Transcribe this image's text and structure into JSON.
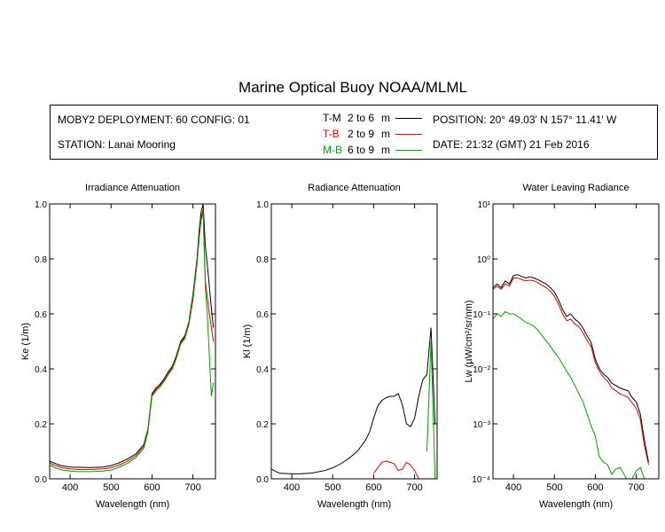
{
  "title": "Marine Optical Buoy NOAA/MLML",
  "info": {
    "deployment": "MOBY2 DEPLOYMENT: 60 CONFIG: 01",
    "station": "STATION: Lanai Mooring",
    "position": "POSITION: 20° 49.03' N   157° 11.41' W",
    "date": "DATE: 21:32 (GMT) 21 Feb 2016",
    "pairs": [
      {
        "code": "T-M",
        "range": "2 to 6",
        "unit": "m",
        "color": "#000000"
      },
      {
        "code": "T-B",
        "range": "2 to 9",
        "unit": "m",
        "color": "#e00000"
      },
      {
        "code": "M-B",
        "range": "6 to 9",
        "unit": "m",
        "color": "#00a000"
      }
    ]
  },
  "chart_data": [
    {
      "type": "line",
      "title": "Irradiance Attenuation",
      "xlabel": "Wavelength (nm)",
      "ylabel": "Ke  (1/m)",
      "xlim": [
        350,
        755
      ],
      "ylim": [
        0,
        1.0
      ],
      "xticks": [
        400,
        500,
        600,
        700
      ],
      "yticks": [
        "0.0",
        "0.2",
        "0.4",
        "0.6",
        "0.8",
        "1.0"
      ],
      "yticks_values": [
        0,
        0.2,
        0.4,
        0.6,
        0.8,
        1.0
      ],
      "x": [
        350,
        360,
        370,
        380,
        400,
        420,
        450,
        480,
        500,
        520,
        540,
        560,
        580,
        590,
        600,
        610,
        620,
        630,
        640,
        650,
        660,
        670,
        680,
        690,
        700,
        710,
        715,
        720,
        725,
        730,
        735,
        740,
        745,
        750
      ],
      "series": [
        {
          "color": "#000000",
          "values": [
            0.065,
            0.058,
            0.052,
            0.047,
            0.043,
            0.042,
            0.041,
            0.043,
            0.048,
            0.058,
            0.072,
            0.09,
            0.125,
            0.18,
            0.31,
            0.33,
            0.345,
            0.365,
            0.39,
            0.41,
            0.45,
            0.5,
            0.52,
            0.57,
            0.67,
            0.8,
            0.9,
            0.97,
            1.0,
            0.85,
            0.78,
            0.7,
            0.62,
            0.55
          ]
        },
        {
          "color": "#e00000",
          "values": [
            0.058,
            0.05,
            0.045,
            0.04,
            0.036,
            0.034,
            0.034,
            0.036,
            0.04,
            0.05,
            0.064,
            0.083,
            0.118,
            0.175,
            0.305,
            0.325,
            0.34,
            0.36,
            0.385,
            0.405,
            0.445,
            0.495,
            0.515,
            0.565,
            0.66,
            0.79,
            0.88,
            0.95,
            0.98,
            0.72,
            0.66,
            0.6,
            0.55,
            0.5
          ]
        },
        {
          "color": "#00a000",
          "values": [
            0.05,
            0.042,
            0.037,
            0.032,
            0.028,
            0.026,
            0.026,
            0.028,
            0.032,
            0.042,
            0.056,
            0.076,
            0.112,
            0.17,
            0.3,
            0.32,
            0.335,
            0.355,
            0.38,
            0.4,
            0.44,
            0.49,
            0.51,
            0.56,
            0.65,
            0.78,
            0.87,
            0.94,
            0.97,
            0.7,
            0.6,
            0.45,
            0.3,
            0.35
          ]
        }
      ]
    },
    {
      "type": "line",
      "title": "Radiance Attenuation",
      "xlabel": "Wavelength (nm)",
      "ylabel": "Kl  (1/m)",
      "xlim": [
        350,
        755
      ],
      "ylim": [
        0,
        1.0
      ],
      "xticks": [
        400,
        500,
        600,
        700
      ],
      "yticks": [
        "0.0",
        "0.2",
        "0.4",
        "0.6",
        "0.8",
        "1.0"
      ],
      "yticks_values": [
        0,
        0.2,
        0.4,
        0.6,
        0.8,
        1.0
      ],
      "x": [
        350,
        370,
        400,
        420,
        450,
        480,
        500,
        520,
        540,
        560,
        580,
        590,
        600,
        610,
        620,
        630,
        640,
        650,
        660,
        670,
        680,
        690,
        700,
        710,
        720,
        730,
        740,
        750
      ],
      "series": [
        {
          "color": "#000000",
          "values": [
            0.035,
            0.02,
            0.018,
            0.018,
            0.021,
            0.03,
            0.04,
            0.055,
            0.075,
            0.1,
            0.14,
            0.17,
            0.22,
            0.265,
            0.285,
            0.295,
            0.3,
            0.3,
            0.31,
            0.27,
            0.2,
            0.19,
            0.22,
            0.3,
            0.36,
            0.38,
            0.55,
            0.2
          ]
        },
        {
          "color": "#e00000",
          "values": [
            null,
            null,
            null,
            null,
            null,
            null,
            null,
            null,
            null,
            null,
            null,
            null,
            0.02,
            0.04,
            0.06,
            0.065,
            0.06,
            0.055,
            0.03,
            0.035,
            0.06,
            0.05,
            0.03,
            0.0,
            null,
            null,
            null,
            null
          ]
        },
        {
          "color": "#00a000",
          "values": [
            null,
            null,
            null,
            null,
            null,
            null,
            null,
            null,
            null,
            null,
            null,
            null,
            null,
            null,
            null,
            null,
            null,
            null,
            null,
            null,
            null,
            null,
            null,
            null,
            null,
            0.1,
            0.5,
            0.0
          ]
        }
      ]
    },
    {
      "type": "line",
      "title": "Water Leaving Radiance",
      "xlabel": "Wavelength (nm)",
      "ylabel": "Lw  (µW/cm²/sr/nm)",
      "xscale": "log-y",
      "xlim": [
        350,
        755
      ],
      "ylim": [
        0.0001,
        10
      ],
      "xticks": [
        400,
        500,
        600,
        700
      ],
      "yticks": [
        "10⁻⁴",
        "10⁻³",
        "10⁻²",
        "10⁻¹",
        "10⁰",
        "10¹"
      ],
      "yticks_values": [
        0.0001,
        0.001,
        0.01,
        0.1,
        1,
        10
      ],
      "x": [
        350,
        360,
        370,
        380,
        390,
        400,
        410,
        420,
        430,
        440,
        450,
        460,
        470,
        480,
        490,
        500,
        510,
        520,
        530,
        540,
        550,
        560,
        570,
        580,
        590,
        600,
        610,
        620,
        630,
        640,
        650,
        660,
        670,
        680,
        690,
        700,
        710,
        720,
        730
      ],
      "series": [
        {
          "color": "#000000",
          "values": [
            0.3,
            0.35,
            0.3,
            0.4,
            0.35,
            0.5,
            0.52,
            0.48,
            0.45,
            0.47,
            0.45,
            0.42,
            0.38,
            0.35,
            0.3,
            0.25,
            0.18,
            0.12,
            0.09,
            0.1,
            0.08,
            0.07,
            0.055,
            0.04,
            0.03,
            0.015,
            0.01,
            0.008,
            0.007,
            0.0055,
            0.005,
            0.0045,
            0.0042,
            0.004,
            0.003,
            0.0025,
            0.0015,
            0.0005,
            0.0002
          ]
        },
        {
          "color": "#e00000",
          "values": [
            0.28,
            0.32,
            0.28,
            0.35,
            0.32,
            0.45,
            0.45,
            0.42,
            0.4,
            0.41,
            0.4,
            0.37,
            0.33,
            0.3,
            0.26,
            0.21,
            0.15,
            0.1,
            0.075,
            0.08,
            0.065,
            0.058,
            0.045,
            0.033,
            0.025,
            0.013,
            0.009,
            0.007,
            0.006,
            0.0045,
            0.004,
            0.0035,
            0.0033,
            0.003,
            0.0024,
            0.0019,
            0.0012,
            0.0004,
            0.00018
          ]
        },
        {
          "color": "#00a000",
          "values": [
            0.08,
            0.1,
            0.09,
            0.11,
            0.1,
            0.1,
            0.09,
            0.08,
            0.07,
            0.065,
            0.06,
            0.05,
            0.04,
            0.032,
            0.026,
            0.02,
            0.016,
            0.012,
            0.009,
            0.007,
            0.005,
            0.0035,
            0.0025,
            0.0015,
            0.0009,
            0.0006,
            0.00025,
            0.0002,
            0.00018,
            0.00012,
            0.00015,
            0.00016,
            0.00012,
            9e-05,
            0.0001,
            0.00014,
            0.00016,
            0.0001,
            null
          ]
        }
      ]
    }
  ]
}
